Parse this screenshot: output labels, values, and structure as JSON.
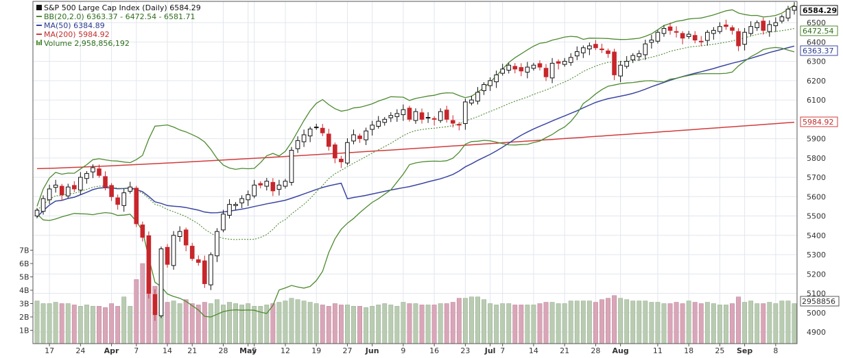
{
  "colors": {
    "up": "#111111",
    "down": "#c7262b",
    "bb": "#4d8a2e",
    "bb_mid": "#4d8a2e",
    "ma50": "#3a46a0",
    "ma200": "#d13b3b",
    "vol_up": "#b9ccb2",
    "vol_down": "#d9a6b8",
    "grid": "#e2e6ee",
    "frame": "#555555",
    "bg": "#ffffff"
  },
  "legend": {
    "title": "S&P 500 Large Cap Index (Daily) 6584.29",
    "bb": "BB(20,2.0) 6363.37 - 6472.54 - 6581.71",
    "ma50": "MA(50) 6384.89",
    "ma200": "MA(200) 5984.92",
    "volume": "Volume 2,958,856,192"
  },
  "last_labels": {
    "price": "6584.29",
    "bb_mid": "6472.54",
    "bb_low": "6363.37",
    "ma200": "5984.92",
    "volume": "2958856"
  },
  "chart_data": {
    "type": "candlestick",
    "y_price_ticks": [
      4900,
      5000,
      5100,
      5200,
      5300,
      5400,
      5500,
      5600,
      5700,
      5800,
      5900,
      6000,
      6100,
      6200,
      6300,
      6400,
      6500
    ],
    "ylim": [
      4840,
      6610
    ],
    "y_volume_ticks": [
      "1B",
      "2B",
      "3B",
      "4B",
      "5B",
      "6B",
      "7B"
    ],
    "x_ticks": [
      {
        "label": "17",
        "idx": 2
      },
      {
        "label": "24",
        "idx": 7
      },
      {
        "label": "Apr",
        "idx": 12
      },
      {
        "label": "7",
        "idx": 16
      },
      {
        "label": "14",
        "idx": 21
      },
      {
        "label": "21",
        "idx": 25
      },
      {
        "label": "28",
        "idx": 30
      },
      {
        "label": "May",
        "idx": 34
      },
      {
        "label": "5",
        "idx": 35
      },
      {
        "label": "12",
        "idx": 40
      },
      {
        "label": "19",
        "idx": 45
      },
      {
        "label": "27",
        "idx": 50
      },
      {
        "label": "Jun",
        "idx": 54
      },
      {
        "label": "9",
        "idx": 59
      },
      {
        "label": "16",
        "idx": 64
      },
      {
        "label": "23",
        "idx": 69
      },
      {
        "label": "Jul",
        "idx": 73
      },
      {
        "label": "7",
        "idx": 75
      },
      {
        "label": "14",
        "idx": 80
      },
      {
        "label": "21",
        "idx": 85
      },
      {
        "label": "28",
        "idx": 90
      },
      {
        "label": "Aug",
        "idx": 94
      },
      {
        "label": "11",
        "idx": 100
      },
      {
        "label": "18",
        "idx": 105
      },
      {
        "label": "25",
        "idx": 110
      },
      {
        "label": "Sep",
        "idx": 114
      },
      {
        "label": "8",
        "idx": 119
      }
    ],
    "closes": [
      5530,
      5590,
      5640,
      5660,
      5610,
      5650,
      5640,
      5700,
      5720,
      5750,
      5710,
      5650,
      5600,
      5560,
      5620,
      5650,
      5460,
      5390,
      5100,
      4990,
      5330,
      5250,
      5400,
      5420,
      5350,
      5280,
      5260,
      5150,
      5300,
      5420,
      5510,
      5560,
      5560,
      5590,
      5610,
      5660,
      5660,
      5680,
      5630,
      5660,
      5680,
      5840,
      5890,
      5920,
      5950,
      5960,
      5930,
      5860,
      5800,
      5780,
      5880,
      5920,
      5900,
      5940,
      5970,
      5990,
      6000,
      6020,
      6030,
      6050,
      6000,
      6040,
      6000,
      6010,
      6000,
      6040,
      6000,
      5980,
      5970,
      6090,
      6100,
      6140,
      6180,
      6200,
      6230,
      6260,
      6280,
      6260,
      6250,
      6270,
      6280,
      6270,
      6220,
      6290,
      6290,
      6300,
      6320,
      6350,
      6370,
      6380,
      6370,
      6360,
      6340,
      6230,
      6280,
      6300,
      6330,
      6340,
      6390,
      6410,
      6450,
      6470,
      6460,
      6450,
      6420,
      6440,
      6410,
      6400,
      6450,
      6460,
      6480,
      6480,
      6460,
      6380,
      6450,
      6480,
      6500,
      6460,
      6490,
      6500,
      6530,
      6570,
      6584
    ],
    "volumes": [
      3.2,
      3.0,
      3.0,
      3.1,
      3.0,
      3.0,
      2.9,
      2.8,
      2.9,
      2.8,
      2.8,
      2.7,
      3.0,
      2.8,
      3.5,
      2.8,
      4.8,
      6.0,
      5.0,
      4.3,
      4.1,
      3.1,
      3.2,
      3.0,
      3.3,
      3.0,
      2.9,
      3.1,
      3.0,
      3.3,
      2.9,
      3.1,
      3.0,
      2.9,
      3.0,
      2.8,
      2.8,
      2.9,
      3.0,
      3.1,
      3.2,
      3.4,
      3.3,
      3.2,
      3.1,
      3.0,
      2.9,
      2.8,
      3.0,
      2.9,
      2.9,
      2.8,
      2.8,
      2.7,
      2.8,
      2.9,
      3.0,
      2.9,
      2.8,
      3.1,
      3.0,
      3.0,
      2.9,
      2.9,
      2.9,
      3.0,
      3.0,
      3.1,
      3.4,
      3.4,
      3.5,
      3.5,
      3.3,
      3.0,
      2.9,
      3.0,
      3.0,
      2.9,
      2.9,
      2.9,
      2.9,
      3.0,
      3.1,
      3.1,
      3.0,
      3.0,
      3.2,
      3.2,
      3.2,
      3.2,
      3.1,
      3.3,
      3.4,
      3.6,
      3.4,
      3.3,
      3.2,
      3.2,
      3.2,
      3.1,
      3.1,
      3.0,
      3.0,
      3.1,
      3.0,
      3.2,
      3.1,
      3.0,
      3.1,
      3.0,
      2.9,
      2.9,
      3.0,
      3.5,
      3.1,
      3.2,
      3.0,
      3.0,
      3.1,
      3.0,
      3.2,
      3.2,
      3.0
    ],
    "ma200_range": [
      5745,
      5984.92
    ],
    "title": "S&P 500 Large Cap Index (Daily)"
  }
}
